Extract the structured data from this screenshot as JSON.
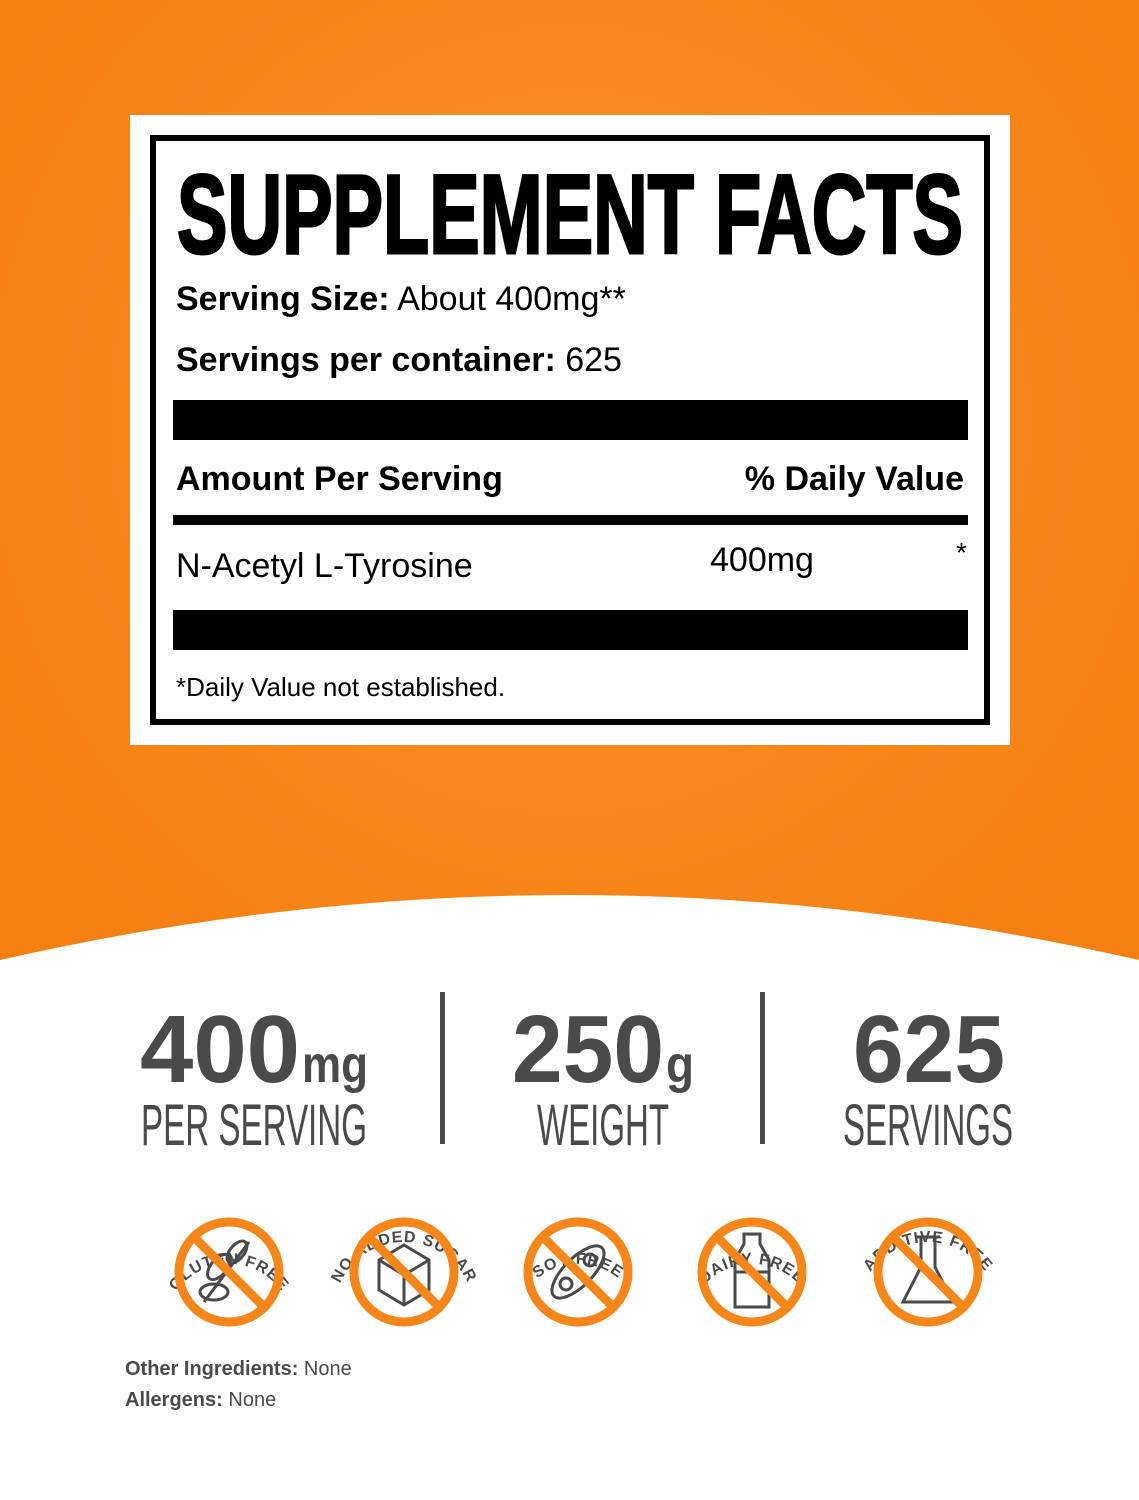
{
  "colors": {
    "orange": "#f7861a",
    "dark_gray": "#4a4a4a",
    "black": "#000000"
  },
  "facts": {
    "title": "SUPPLEMENT FACTS",
    "serving_size_label": "Serving Size:",
    "serving_size_value": "About 400mg**",
    "servings_label": "Servings per container:",
    "servings_value": "625",
    "amount_header": "Amount Per Serving",
    "dv_header": "% Daily Value",
    "ingredient": {
      "name": "N-Acetyl L-Tyrosine",
      "amount": "400mg",
      "dv": "*"
    },
    "footnote": "*Daily Value not established."
  },
  "stats": [
    {
      "number": "400",
      "unit": "mg",
      "label": "PER SERVING"
    },
    {
      "number": "250",
      "unit": "g",
      "label": "WEIGHT"
    },
    {
      "number": "625",
      "unit": "",
      "label": "SERVINGS"
    }
  ],
  "badges": [
    {
      "text": "GLUTEN FREE",
      "icon": "wheat-icon"
    },
    {
      "text": "NO ADDED SUGAR",
      "icon": "sugar-cube-icon"
    },
    {
      "text": "SOY FREE",
      "icon": "soybean-icon"
    },
    {
      "text": "DAIRY FREE",
      "icon": "milk-bottle-icon"
    },
    {
      "text": "ADDITIVE FREE",
      "icon": "flask-icon"
    }
  ],
  "other_ingredients": {
    "label": "Other Ingredients:",
    "value": "None"
  },
  "allergens": {
    "label": "Allergens:",
    "value": "None"
  }
}
